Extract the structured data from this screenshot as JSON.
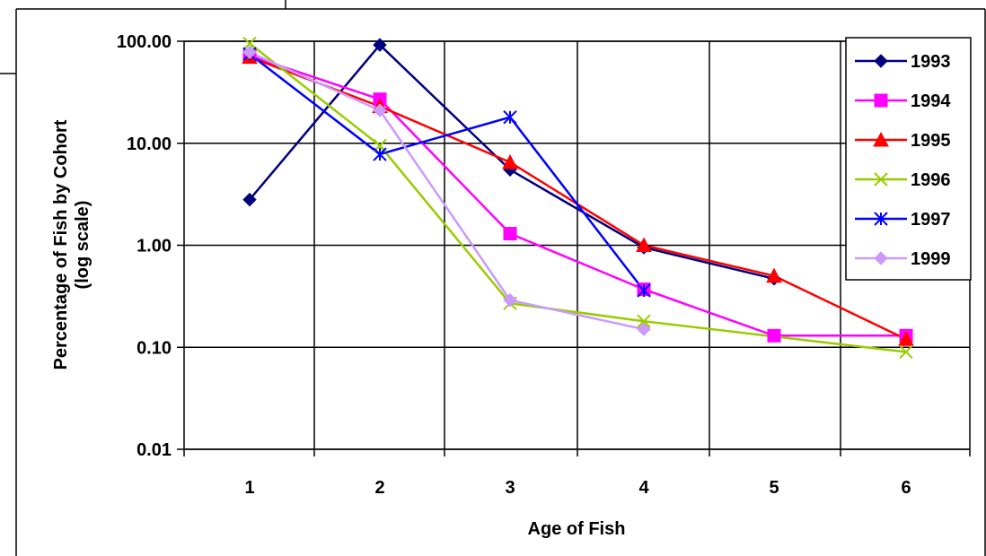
{
  "chart_data": {
    "type": "line",
    "title": "",
    "xlabel": "Age of Fish",
    "ylabel": "Percentage of Fish by Cohort",
    "ylabel_line2": "(log scale)",
    "y_scale": "log",
    "ylim": [
      0.01,
      100
    ],
    "xlim": [
      1,
      6
    ],
    "x_ticks": [
      "1",
      "2",
      "3",
      "4",
      "5",
      "6"
    ],
    "y_ticks": [
      "100.00",
      "10.00",
      "1.00",
      "0.10",
      "0.01"
    ],
    "grid": true,
    "legend_position": "right",
    "series": [
      {
        "name": "1993",
        "color": "#000080",
        "marker": "diamond",
        "x": [
          1,
          2,
          3,
          4,
          5
        ],
        "values": [
          2.8,
          92,
          5.5,
          0.95,
          0.47
        ]
      },
      {
        "name": "1994",
        "color": "#FF00FF",
        "marker": "square",
        "x": [
          1,
          2,
          3,
          4,
          5,
          6
        ],
        "values": [
          72,
          27,
          1.3,
          0.37,
          0.13,
          0.13
        ]
      },
      {
        "name": "1995",
        "color": "#FF0000",
        "marker": "triangle",
        "x": [
          1,
          2,
          3,
          4,
          5,
          6
        ],
        "values": [
          70,
          23,
          6.5,
          1.0,
          0.5,
          0.12
        ]
      },
      {
        "name": "1996",
        "color": "#99CC00",
        "marker": "x",
        "x": [
          1,
          2,
          3,
          4,
          6
        ],
        "values": [
          95,
          9.5,
          0.27,
          0.18,
          0.09
        ]
      },
      {
        "name": "1997",
        "color": "#0000FF",
        "marker": "asterisk",
        "x": [
          1,
          2,
          3,
          4
        ],
        "values": [
          75,
          7.8,
          18,
          0.36
        ]
      },
      {
        "name": "1999",
        "color": "#CC99FF",
        "marker": "diamond",
        "x": [
          1,
          2,
          3,
          4
        ],
        "values": [
          78,
          21,
          0.29,
          0.15
        ]
      }
    ]
  }
}
